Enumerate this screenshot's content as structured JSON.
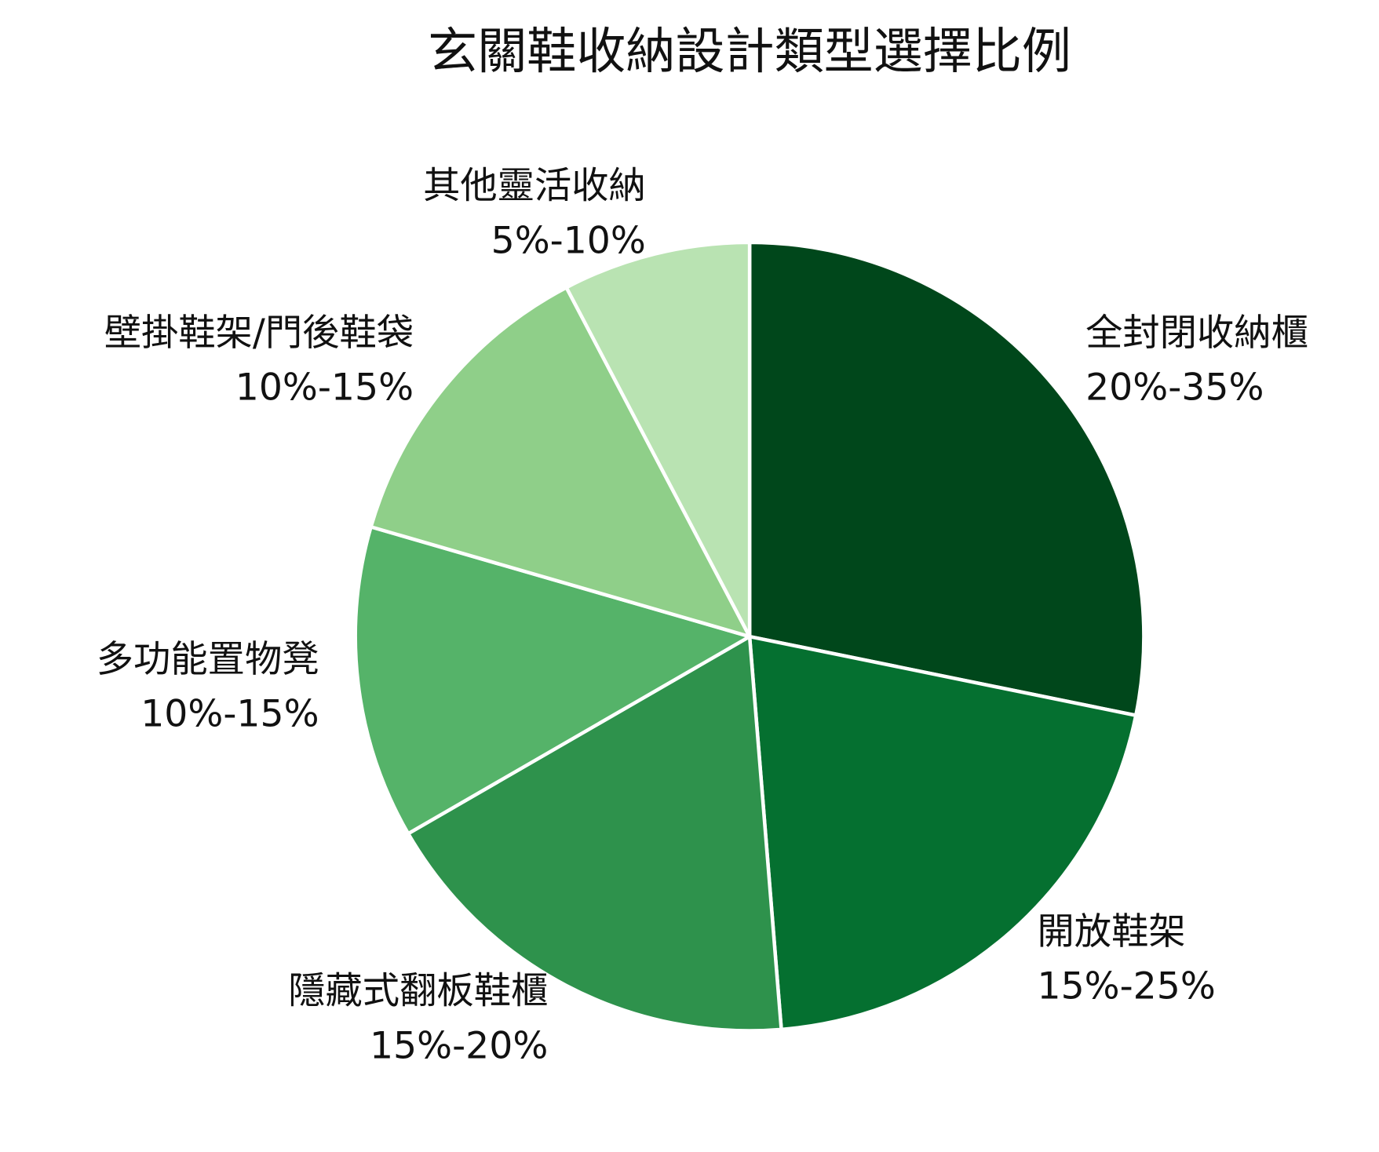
{
  "chart_data": {
    "type": "pie",
    "title": "玄關鞋收納設計類型選擇比例",
    "categories": [
      "全封閉收納櫃",
      "開放鞋架",
      "隱藏式翻板鞋櫃",
      "多功能置物凳",
      "壁掛鞋架/門後鞋袋",
      "其他靈活收納"
    ],
    "values": [
      27.5,
      20,
      17.5,
      12.5,
      12.5,
      7.5
    ],
    "value_labels": [
      "20%-35%",
      "15%-25%",
      "15%-20%",
      "10%-15%",
      "10%-15%",
      "5%-10%"
    ],
    "colors": [
      "#00471b",
      "#057030",
      "#2e924c",
      "#55b369",
      "#8fcf89",
      "#b9e3b2"
    ]
  }
}
